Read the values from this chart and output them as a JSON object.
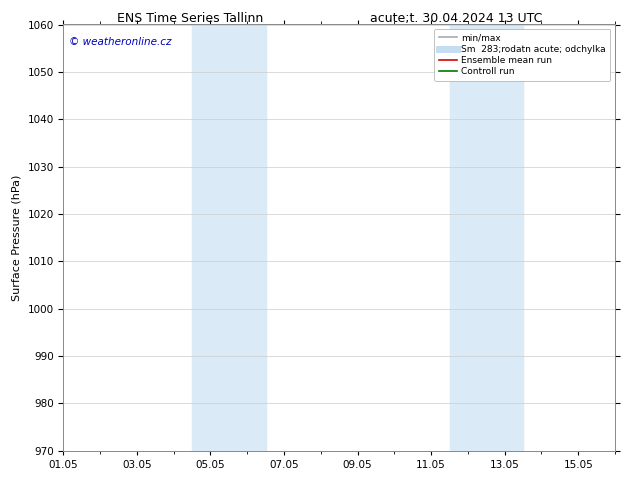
{
  "title_left": "ENS Time Series Tallinn",
  "title_right": "acute;t. 30.04.2024 13 UTC",
  "ylabel": "Surface Pressure (hPa)",
  "ylim": [
    970,
    1060
  ],
  "yticks": [
    970,
    980,
    990,
    1000,
    1010,
    1020,
    1030,
    1040,
    1050,
    1060
  ],
  "xtick_labels": [
    "01.05",
    "03.05",
    "05.05",
    "07.05",
    "09.05",
    "11.05",
    "13.05",
    "15.05"
  ],
  "xtick_positions": [
    0,
    2,
    4,
    6,
    8,
    10,
    12,
    14
  ],
  "xlim": [
    0,
    15
  ],
  "shaded_bands": [
    {
      "x_start": 3.5,
      "x_end": 4.7,
      "color": "#daeaf7"
    },
    {
      "x_start": 4.7,
      "x_end": 5.5,
      "color": "#daeaf7"
    },
    {
      "x_start": 10.5,
      "x_end": 11.5,
      "color": "#daeaf7"
    },
    {
      "x_start": 11.5,
      "x_end": 12.5,
      "color": "#daeaf7"
    }
  ],
  "watermark": "© weatheronline.cz",
  "watermark_color": "#0000bb",
  "background_color": "#ffffff",
  "legend_entries": [
    {
      "label": "min/max",
      "color": "#aaaaaa",
      "lw": 1.2,
      "ls": "-"
    },
    {
      "label": "Sm  283;rodatn acute; odchylka",
      "color": "#c5ddf0",
      "lw": 5,
      "ls": "-"
    },
    {
      "label": "Ensemble mean run",
      "color": "#dd0000",
      "lw": 1.2,
      "ls": "-"
    },
    {
      "label": "Controll run",
      "color": "#007700",
      "lw": 1.2,
      "ls": "-"
    }
  ],
  "grid_color": "#cccccc",
  "title_fontsize": 9,
  "axis_label_fontsize": 8,
  "tick_fontsize": 7.5
}
